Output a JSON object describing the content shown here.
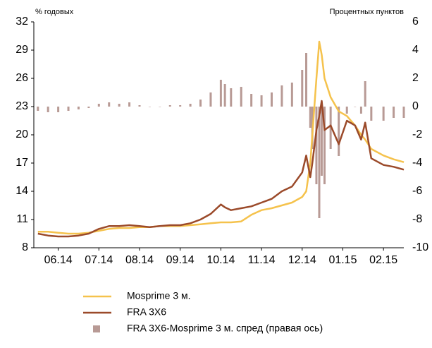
{
  "chart_data": {
    "type": "line",
    "y_label": "% годовых",
    "y2_label": "Процентных пунктов",
    "x": [
      0,
      0.25,
      0.5,
      0.75,
      1,
      1.25,
      1.5,
      1.75,
      2,
      2.25,
      2.5,
      2.75,
      3,
      3.25,
      3.5,
      3.75,
      4,
      4.25,
      4.5,
      4.6,
      4.75,
      5,
      5.25,
      5.5,
      5.75,
      6,
      6.25,
      6.5,
      6.6,
      6.7,
      6.75,
      6.85,
      6.92,
      6.98,
      7.05,
      7.2,
      7.4,
      7.6,
      7.8,
      7.95,
      8.05,
      8.2,
      8.5,
      8.75,
      9.0
    ],
    "xlim": [
      -0.1,
      9.0
    ],
    "xticks": [
      {
        "value": 0.5,
        "label": "06.14"
      },
      {
        "value": 1.5,
        "label": "07.14"
      },
      {
        "value": 2.5,
        "label": "08.14"
      },
      {
        "value": 3.5,
        "label": "09.14"
      },
      {
        "value": 4.5,
        "label": "10.14"
      },
      {
        "value": 5.5,
        "label": "11.14"
      },
      {
        "value": 6.5,
        "label": "12.14"
      },
      {
        "value": 7.5,
        "label": "01.15"
      },
      {
        "value": 8.5,
        "label": "02.15"
      }
    ],
    "ylim": [
      8,
      32
    ],
    "yticks": [
      8,
      11,
      14,
      17,
      20,
      23,
      26,
      29,
      32
    ],
    "y2lim": [
      -10,
      6
    ],
    "y2ticks": [
      -10,
      -8,
      -6,
      -4,
      -2,
      0,
      2,
      4,
      6
    ],
    "series": [
      {
        "name": "FRA 3X6-Mosprime 3 м. спред (правая ось)",
        "type": "bar",
        "axis": "y2",
        "color": "#b89a95",
        "values": [
          -0.3,
          -0.4,
          -0.4,
          -0.3,
          -0.2,
          -0.1,
          0.2,
          0.3,
          0.2,
          0.3,
          0.1,
          0.0,
          0.0,
          0.1,
          0.1,
          0.2,
          0.5,
          1.0,
          1.9,
          1.6,
          1.3,
          1.4,
          0.9,
          0.8,
          1.0,
          1.5,
          1.7,
          2.6,
          3.8,
          -1.5,
          -3.0,
          -5.5,
          -7.9,
          -4.9,
          -5.5,
          -3.0,
          -3.5,
          -0.5,
          0.0,
          -0.5,
          1.8,
          -1.0,
          -1.0,
          -0.8,
          -0.8
        ]
      },
      {
        "name": "Mosprime 3 м.",
        "type": "line",
        "color": "#f5c24c",
        "values": [
          9.7,
          9.7,
          9.6,
          9.5,
          9.5,
          9.6,
          9.8,
          10.0,
          10.1,
          10.1,
          10.2,
          10.2,
          10.3,
          10.3,
          10.3,
          10.4,
          10.5,
          10.6,
          10.7,
          10.7,
          10.7,
          10.8,
          11.5,
          12.0,
          12.2,
          12.5,
          12.8,
          13.4,
          14.0,
          17.0,
          20.0,
          26.0,
          29.9,
          28.5,
          26.0,
          24.0,
          22.5,
          22.0,
          21.0,
          20.0,
          19.5,
          18.5,
          17.8,
          17.4,
          17.1
        ]
      },
      {
        "name": "FRA 3X6",
        "type": "line",
        "color": "#9b4a2a",
        "values": [
          9.5,
          9.3,
          9.2,
          9.2,
          9.3,
          9.5,
          10.0,
          10.3,
          10.3,
          10.4,
          10.3,
          10.2,
          10.3,
          10.4,
          10.4,
          10.6,
          11.0,
          11.6,
          12.6,
          12.3,
          12.0,
          12.2,
          12.4,
          12.8,
          13.2,
          14.0,
          14.5,
          16.0,
          17.8,
          15.5,
          17.0,
          20.5,
          22.0,
          23.6,
          20.5,
          21.0,
          19.0,
          21.5,
          21.0,
          19.5,
          21.3,
          17.5,
          16.8,
          16.6,
          16.3
        ]
      }
    ]
  }
}
